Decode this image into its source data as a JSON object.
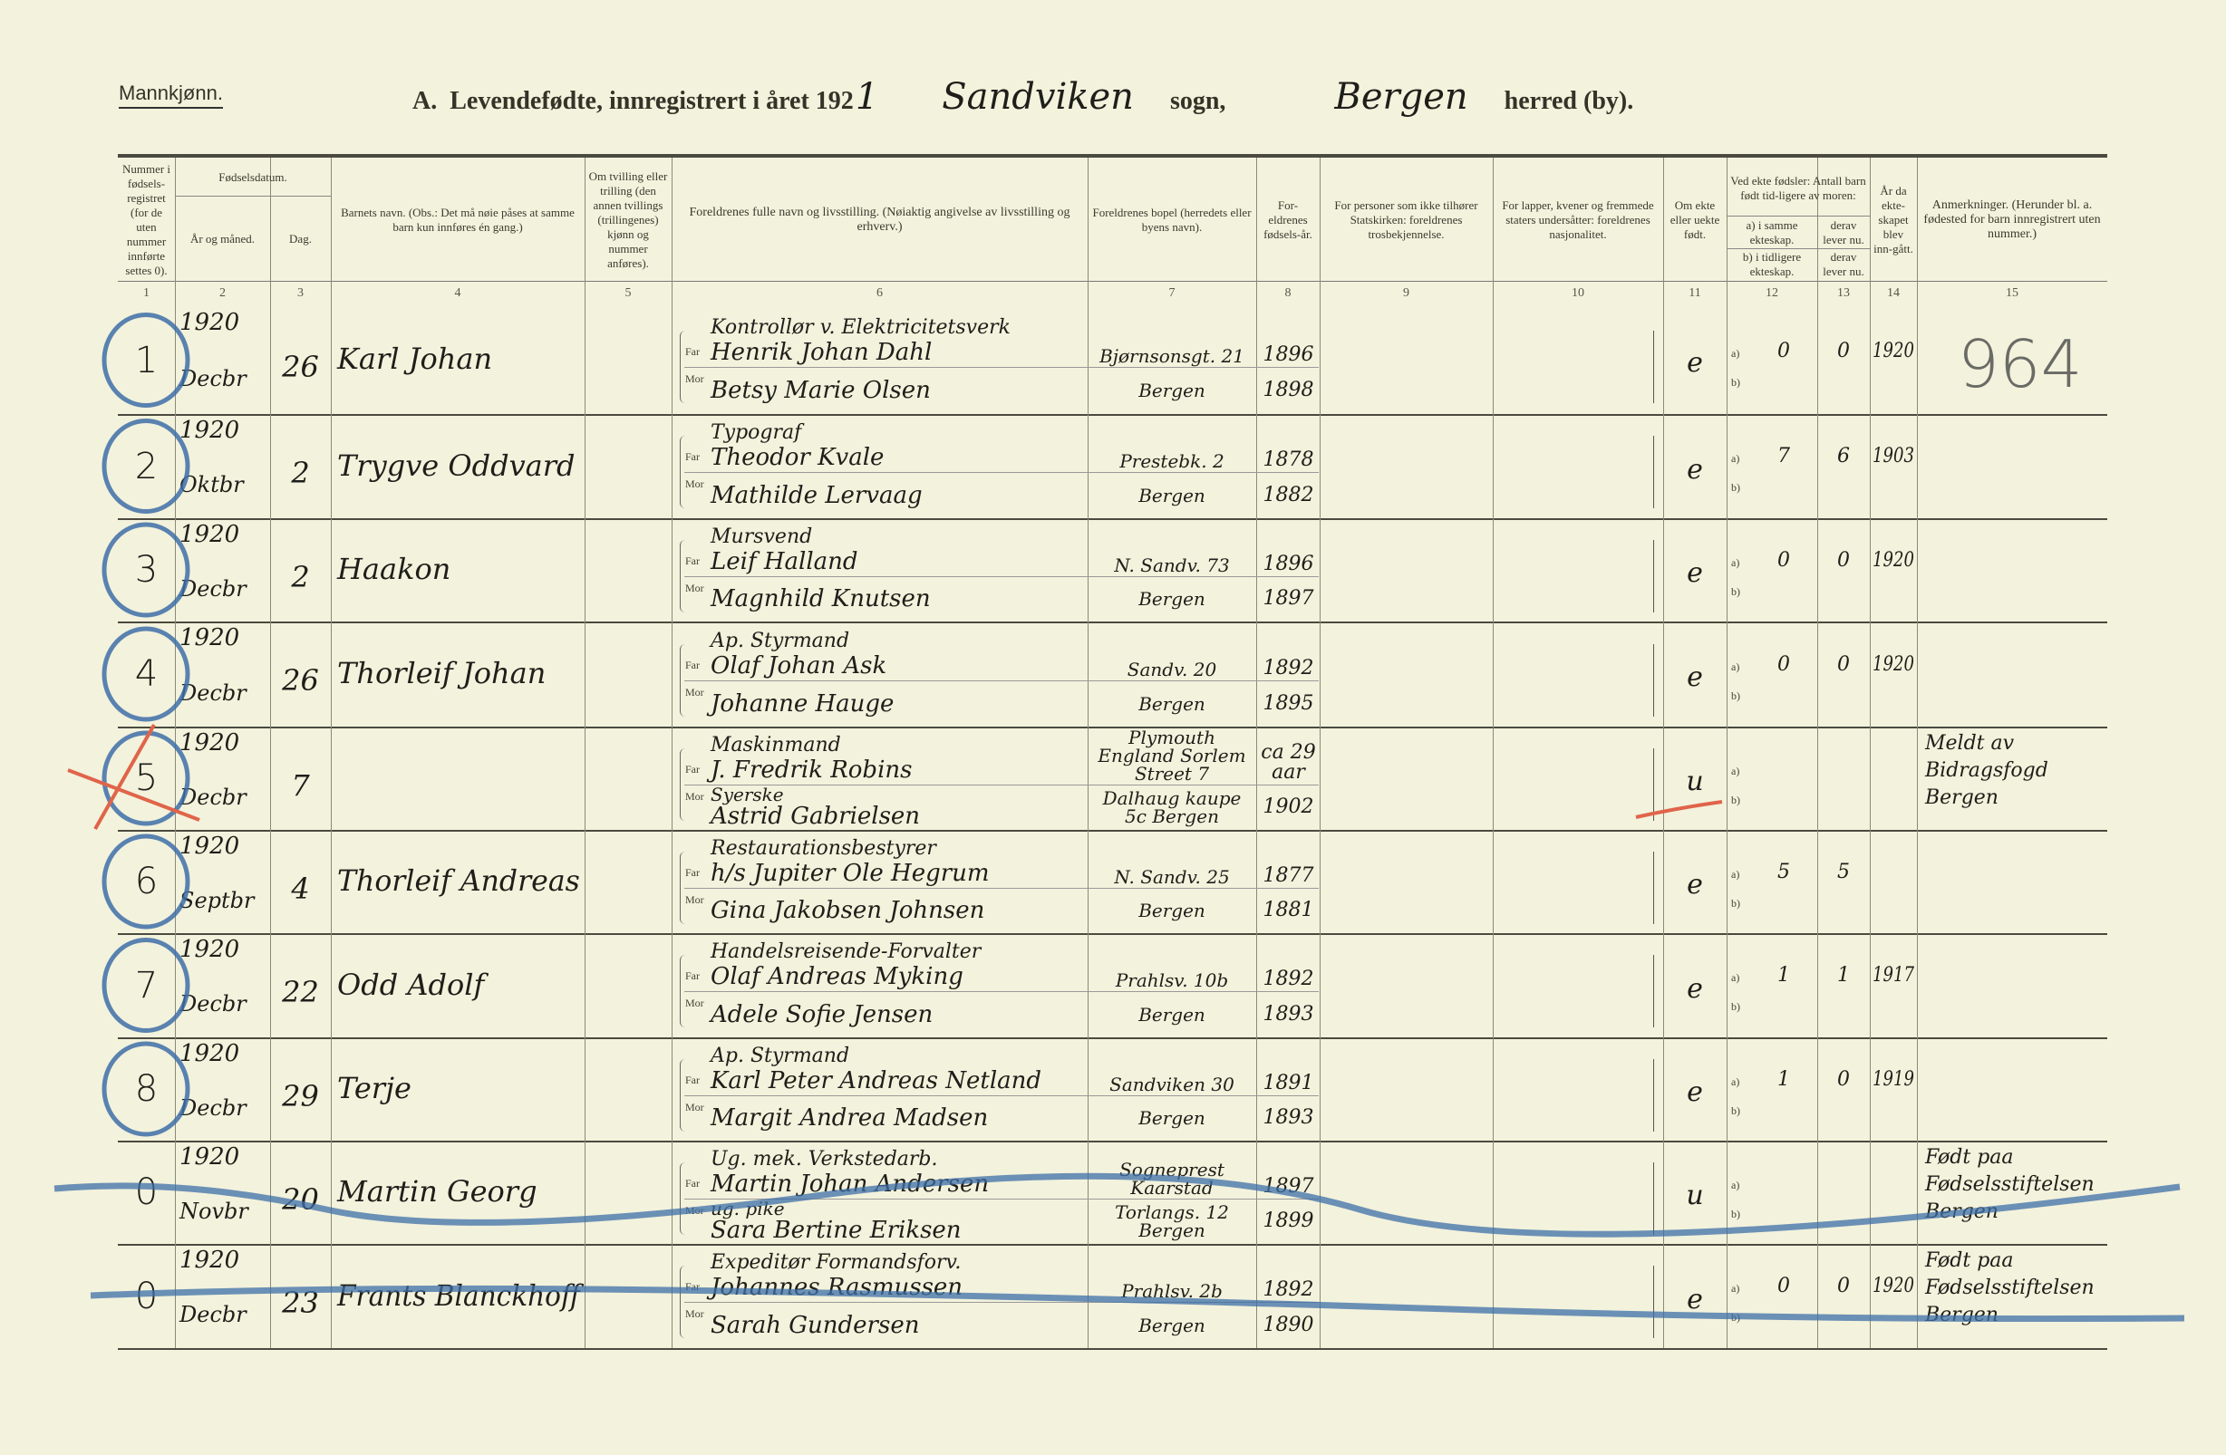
{
  "header": {
    "gender": "Mannkjønn.",
    "title_prefix": "A.  Levendefødte, innregistrert i året 192",
    "year_digit_handwritten": "1",
    "parish_handwritten": "Sandviken",
    "parish_label": "sogn,",
    "district_handwritten": "Bergen",
    "district_label": "herred (by)."
  },
  "columns": [
    {
      "num": "1",
      "label": "Nummer i fødsels-registret (for de uten nummer innførte settes 0)."
    },
    {
      "num": "2",
      "label": "År og måned."
    },
    {
      "num": "3",
      "label": "Dag."
    },
    {
      "num": "4",
      "label": "Barnets navn. (Obs.: Det må nøie påses at samme barn kun innføres én gang.)"
    },
    {
      "num": "5",
      "label": "Om tvilling eller trilling (den annen tvillings (trillingenes) kjønn og nummer anføres)."
    },
    {
      "num": "6",
      "label": "Foreldrenes fulle navn og livsstilling. (Nøiaktig angivelse av livsstilling og erhverv.)"
    },
    {
      "num": "7",
      "label": "Foreldrenes bopel (herredets eller byens navn)."
    },
    {
      "num": "8",
      "label": "For-eldrenes fødsels-år."
    },
    {
      "num": "9",
      "label": "For personer som ikke tilhører Statskirken: foreldrenes trosbekjennelse."
    },
    {
      "num": "10",
      "label": "For lapper, kvener og fremmede staters undersåtter: foreldrenes nasjonalitet."
    },
    {
      "num": "11",
      "label": "Om ekte eller uekte født."
    },
    {
      "num": "12",
      "label": "a) i samme ekteskap."
    },
    {
      "num": "13",
      "label": "derav lever nu."
    },
    {
      "num": "14",
      "label": "År da ekte-skapet blev inn-gått."
    },
    {
      "num": "15",
      "label": "Anmerkninger. (Herunder bl. a. fødested for barn innregistrert uten nummer.)"
    }
  ],
  "fodselsdatum_label": "Fødselsdatum.",
  "group_12_13_label": "Ved ekte fødsler: Antall barn født tid-ligere av moren:",
  "label_12b": "b) i tidligere ekteskap.",
  "label_13b": "derav lever nu.",
  "far_label": "Far",
  "mor_label": "Mor",
  "a_label": "a)",
  "b_label": "b)",
  "margin_note": "964",
  "rows": [
    {
      "nr": "1",
      "year": "1920",
      "month": "Decbr",
      "day": "26",
      "name": "Karl Johan",
      "occupation": "Kontrollør v. Elektricitetsverk",
      "father": "Henrik Johan Dahl",
      "mother_occ": "",
      "mother": "Betsy Marie Olsen",
      "father_addr": "Bjørnsonsgt. 21",
      "mother_addr": "Bergen",
      "father_year": "1896",
      "mother_year": "1898",
      "legit": "e",
      "c12a": "0",
      "c13a": "0",
      "c14": "1920",
      "remark": ""
    },
    {
      "nr": "2",
      "year": "1920",
      "month": "Oktbr",
      "day": "2",
      "name": "Trygve Oddvard",
      "occupation": "Typograf",
      "father": "Theodor Kvale",
      "mother_occ": "",
      "mother": "Mathilde Lervaag",
      "father_addr": "Prestebk. 2",
      "mother_addr": "Bergen",
      "father_year": "1878",
      "mother_year": "1882",
      "legit": "e",
      "c12a": "7",
      "c13a": "6",
      "c14": "1903",
      "remark": ""
    },
    {
      "nr": "3",
      "year": "1920",
      "month": "Decbr",
      "day": "2",
      "name": "Haakon",
      "occupation": "Mursvend",
      "father": "Leif Halland",
      "mother_occ": "",
      "mother": "Magnhild Knutsen",
      "father_addr": "N. Sandv. 73",
      "mother_addr": "Bergen",
      "father_year": "1896",
      "mother_year": "1897",
      "legit": "e",
      "c12a": "0",
      "c13a": "0",
      "c14": "1920",
      "remark": ""
    },
    {
      "nr": "4",
      "year": "1920",
      "month": "Decbr",
      "day": "26",
      "name": "Thorleif Johan",
      "occupation": "Ap. Styrmand",
      "father": "Olaf Johan Ask",
      "mother_occ": "",
      "mother": "Johanne Hauge",
      "father_addr": "Sandv. 20",
      "mother_addr": "Bergen",
      "father_year": "1892",
      "mother_year": "1895",
      "legit": "e",
      "c12a": "0",
      "c13a": "0",
      "c14": "1920",
      "remark": ""
    },
    {
      "nr": "5",
      "year": "1920",
      "month": "Decbr",
      "day": "7",
      "name": "",
      "occupation": "Maskinmand",
      "father": "J. Fredrik Robins",
      "mother_occ": "Syerske",
      "mother": "Astrid Gabrielsen",
      "father_addr": "Plymouth England Sorlem Street 7",
      "mother_addr": "Dalhaug kaupe 5c Bergen",
      "father_year": "ca 29 aar",
      "mother_year": "1902",
      "legit": "u",
      "c12a": "",
      "c13a": "",
      "c14": "",
      "remark": "Meldt av Bidragsfogd Bergen"
    },
    {
      "nr": "6",
      "year": "1920",
      "month": "Septbr",
      "day": "4",
      "name": "Thorleif Andreas",
      "occupation": "Restaurationsbestyrer",
      "father": "h/s Jupiter Ole Hegrum",
      "mother_occ": "",
      "mother": "Gina Jakobsen Johnsen",
      "father_addr": "N. Sandv. 25",
      "mother_addr": "Bergen",
      "father_year": "1877",
      "mother_year": "1881",
      "legit": "e",
      "c12a": "5",
      "c13a": "5",
      "c14": "",
      "remark": ""
    },
    {
      "nr": "7",
      "year": "1920",
      "month": "Decbr",
      "day": "22",
      "name": "Odd Adolf",
      "occupation": "Handelsreisende-Forvalter",
      "father": "Olaf Andreas Myking",
      "mother_occ": "",
      "mother": "Adele Sofie Jensen",
      "father_addr": "Prahlsv. 10b",
      "mother_addr": "Bergen",
      "father_year": "1892",
      "mother_year": "1893",
      "legit": "e",
      "c12a": "1",
      "c13a": "1",
      "c14": "1917",
      "remark": ""
    },
    {
      "nr": "8",
      "year": "1920",
      "month": "Decbr",
      "day": "29",
      "name": "Terje",
      "occupation": "Ap. Styrmand",
      "father": "Karl Peter Andreas Netland",
      "mother_occ": "",
      "mother": "Margit Andrea Madsen",
      "father_addr": "Sandviken 30",
      "mother_addr": "Bergen",
      "father_year": "1891",
      "mother_year": "1893",
      "legit": "e",
      "c12a": "1",
      "c13a": "0",
      "c14": "1919",
      "remark": ""
    },
    {
      "nr": "0",
      "year": "1920",
      "month": "Novbr",
      "day": "20",
      "name": "Martin Georg",
      "occupation": "Ug. mek. Verkstedarb.",
      "father": "Martin Johan Andersen",
      "mother_occ": "ug. pike",
      "mother": "Sara Bertine Eriksen",
      "father_addr": "Sogneprest Kaarstad",
      "mother_addr": "Torlangs. 12 Bergen",
      "father_year": "1897",
      "mother_year": "1899",
      "legit": "u",
      "c12a": "",
      "c13a": "",
      "c14": "",
      "remark": "Født paa Fødselsstiftelsen Bergen"
    },
    {
      "nr": "0",
      "year": "1920",
      "month": "Decbr",
      "day": "23",
      "name": "Frants Blanckhoff",
      "occupation": "Expeditør Formandsforv.",
      "father": "Johannes Rasmussen",
      "mother_occ": "",
      "mother": "Sarah Gundersen",
      "father_addr": "Prahlsv. 2b",
      "mother_addr": "Bergen",
      "father_year": "1892",
      "mother_year": "1890",
      "legit": "e",
      "c12a": "0",
      "c13a": "0",
      "c14": "1920",
      "remark": "Født paa Fødselsstiftelsen Bergen"
    }
  ],
  "colors": {
    "paper": "#f3f2dc",
    "ink": "#1e1e1a",
    "blue_crayon": "#3d6fa8",
    "red_crayon": "#e0644a"
  }
}
